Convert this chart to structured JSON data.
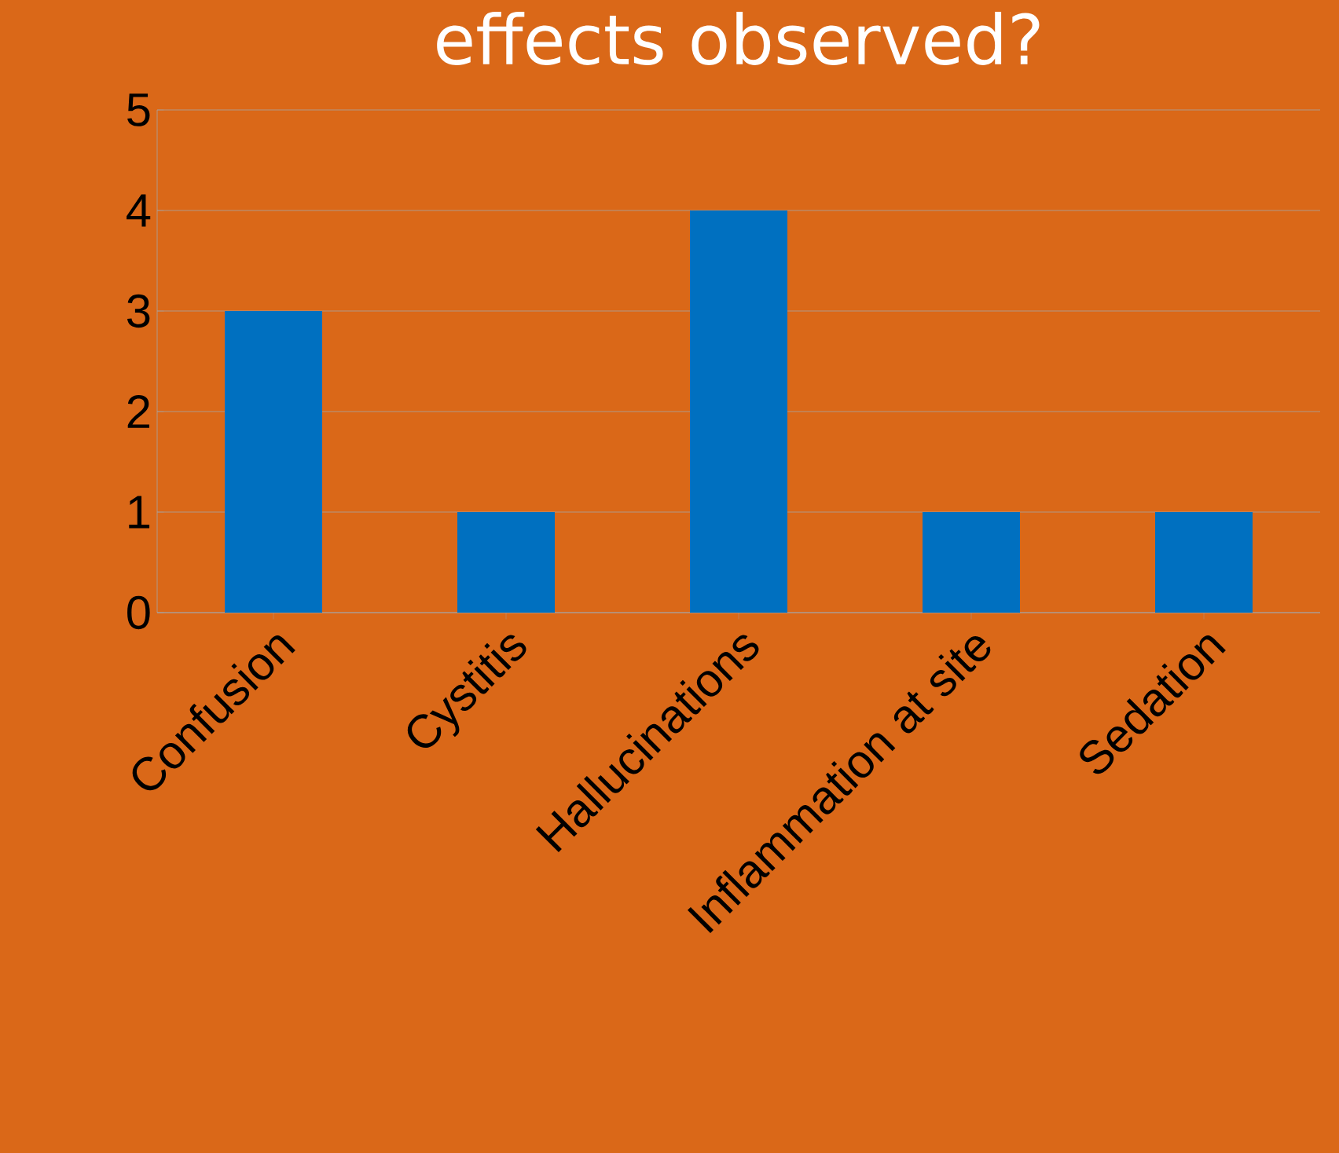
{
  "chart_data": {
    "type": "bar",
    "title": "effects observed?",
    "categories": [
      "Confusion",
      "Cystitis",
      "Hallucinations",
      "Inflammation at site",
      "Sedation"
    ],
    "values": [
      3,
      1,
      4,
      1,
      1
    ],
    "color": "#0070c0",
    "ylim": [
      0,
      5
    ],
    "yticks": [
      0,
      1,
      2,
      3,
      4,
      5
    ],
    "grid": "y"
  }
}
